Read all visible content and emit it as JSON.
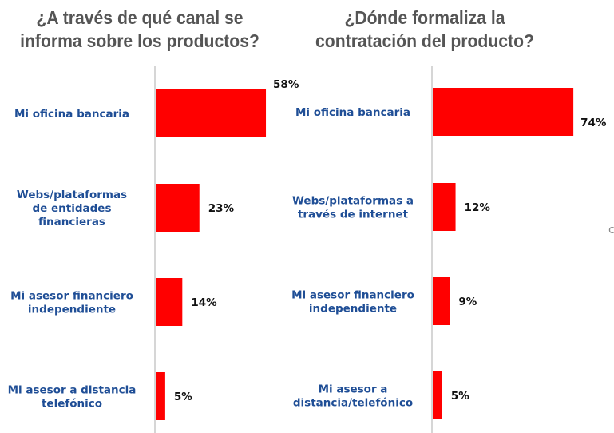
{
  "chart_data": [
    {
      "type": "bar",
      "orientation": "horizontal",
      "title": "¿A través de qué canal se informa sobre los productos?",
      "categories": [
        [
          "Mi oficina bancaria"
        ],
        [
          "Webs/plataformas",
          "de entidades",
          "financieras"
        ],
        [
          "Mi asesor financiero",
          "independiente"
        ],
        [
          "Mi asesor a distancia",
          "telefónico"
        ]
      ],
      "values": [
        58,
        23,
        14,
        5
      ],
      "labels": [
        "58%",
        "23%",
        "14%",
        "5%"
      ],
      "unit": "%",
      "xlim": [
        0,
        100
      ],
      "grid": false,
      "bar_color": "#ff0000"
    },
    {
      "type": "bar",
      "orientation": "horizontal",
      "title": "¿Dónde formaliza la contratación del producto?",
      "categories": [
        [
          "Mi oficina bancaria"
        ],
        [
          "Webs/plataformas a",
          "través de internet"
        ],
        [
          "Mi asesor financiero",
          "independiente"
        ],
        [
          "Mi asesor a",
          "distancia/telefónico"
        ]
      ],
      "values": [
        74,
        12,
        9,
        5
      ],
      "labels": [
        "74%",
        "12%",
        "9%",
        "5%"
      ],
      "unit": "%",
      "xlim": [
        0,
        100
      ],
      "grid": false,
      "bar_color": "#ff0000"
    }
  ],
  "edge_fragment": "c"
}
